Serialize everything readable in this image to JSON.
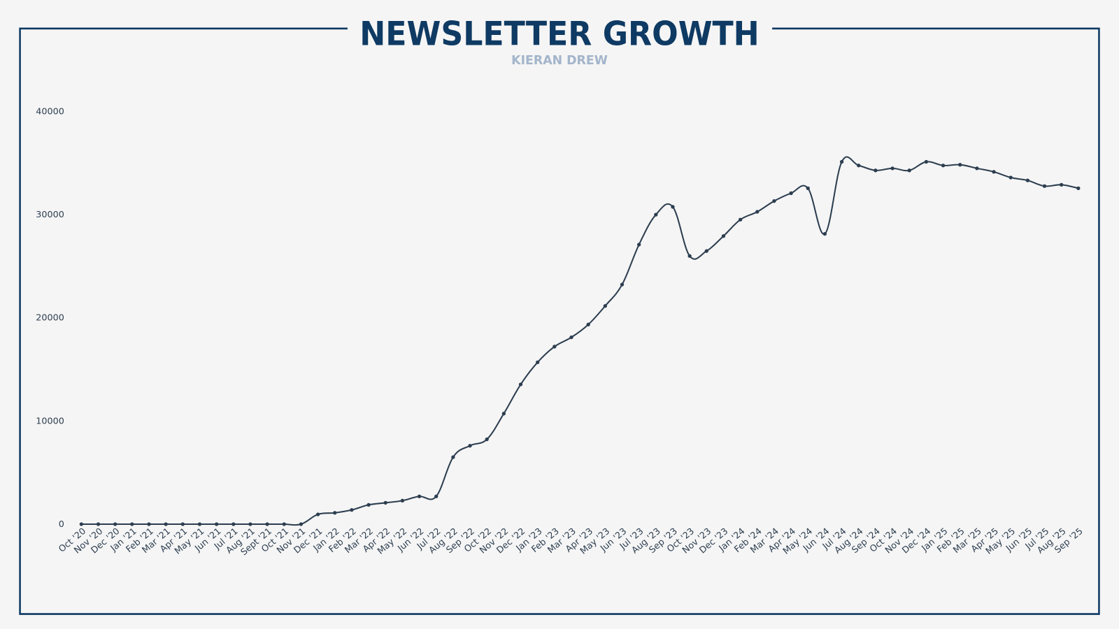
{
  "chart_data": {
    "type": "line",
    "title": "NEWSLETTER GROWTH",
    "subtitle": "KIERAN DREW",
    "xlabel": "",
    "ylabel": "",
    "ylim": [
      0,
      45000
    ],
    "yticks": [
      0,
      10000,
      20000,
      30000,
      40000
    ],
    "grid": false,
    "colors": {
      "frame": "#0e3a63",
      "line": "#2d3e50",
      "subtitle": "#a3b5cb",
      "background": "#f5f5f5"
    },
    "categories": [
      "Oct '20",
      "Nov '20",
      "Dec '20",
      "Jan '21",
      "Feb '21",
      "Mar '21",
      "Apr '21",
      "May '21",
      "Jun '21",
      "Jul '21",
      "Aug '21",
      "Sept '21",
      "Oct '21",
      "Nov '21",
      "Dec '21",
      "Jan '22",
      "Feb '22",
      "Mar '22",
      "Apr '22",
      "May '22",
      "Jun '22",
      "Jul '22",
      "Aug '22",
      "Sep '22",
      "Oct '22",
      "Nov '22",
      "Dec '22",
      "Jan '23",
      "Feb '23",
      "Mar '23",
      "Apr '23",
      "May '23",
      "Jun '23",
      "Jul '23",
      "Aug '23",
      "Sep '23",
      "Oct '23",
      "Nov '23",
      "Dec '23",
      "Jan '24",
      "Feb '24",
      "Mar '24",
      "Apr '24",
      "May '24",
      "Jun '24",
      "Jul '24",
      "Aug '24",
      "Sep '24",
      "Oct '24",
      "Nov '24",
      "Dec '24",
      "Jan '25",
      "Feb '25",
      "Mar '25",
      "Apr '25",
      "May '25",
      "Jun '25",
      "Jul '25",
      "Aug '25",
      "Sep '25"
    ],
    "values": [
      0,
      0,
      0,
      0,
      0,
      0,
      0,
      0,
      0,
      0,
      0,
      0,
      0,
      0,
      950,
      1100,
      1380,
      1870,
      2070,
      2280,
      2690,
      2690,
      6490,
      7600,
      8220,
      10710,
      13540,
      15680,
      17200,
      18100,
      19340,
      21140,
      23210,
      27080,
      29980,
      30740,
      25980,
      26460,
      27910,
      29500,
      30260,
      31300,
      32060,
      32540,
      28120,
      35100,
      34750,
      34270,
      34470,
      34270,
      35100,
      34750,
      34820,
      34470,
      34130,
      33580,
      33300,
      32750,
      32880,
      32540
    ]
  }
}
